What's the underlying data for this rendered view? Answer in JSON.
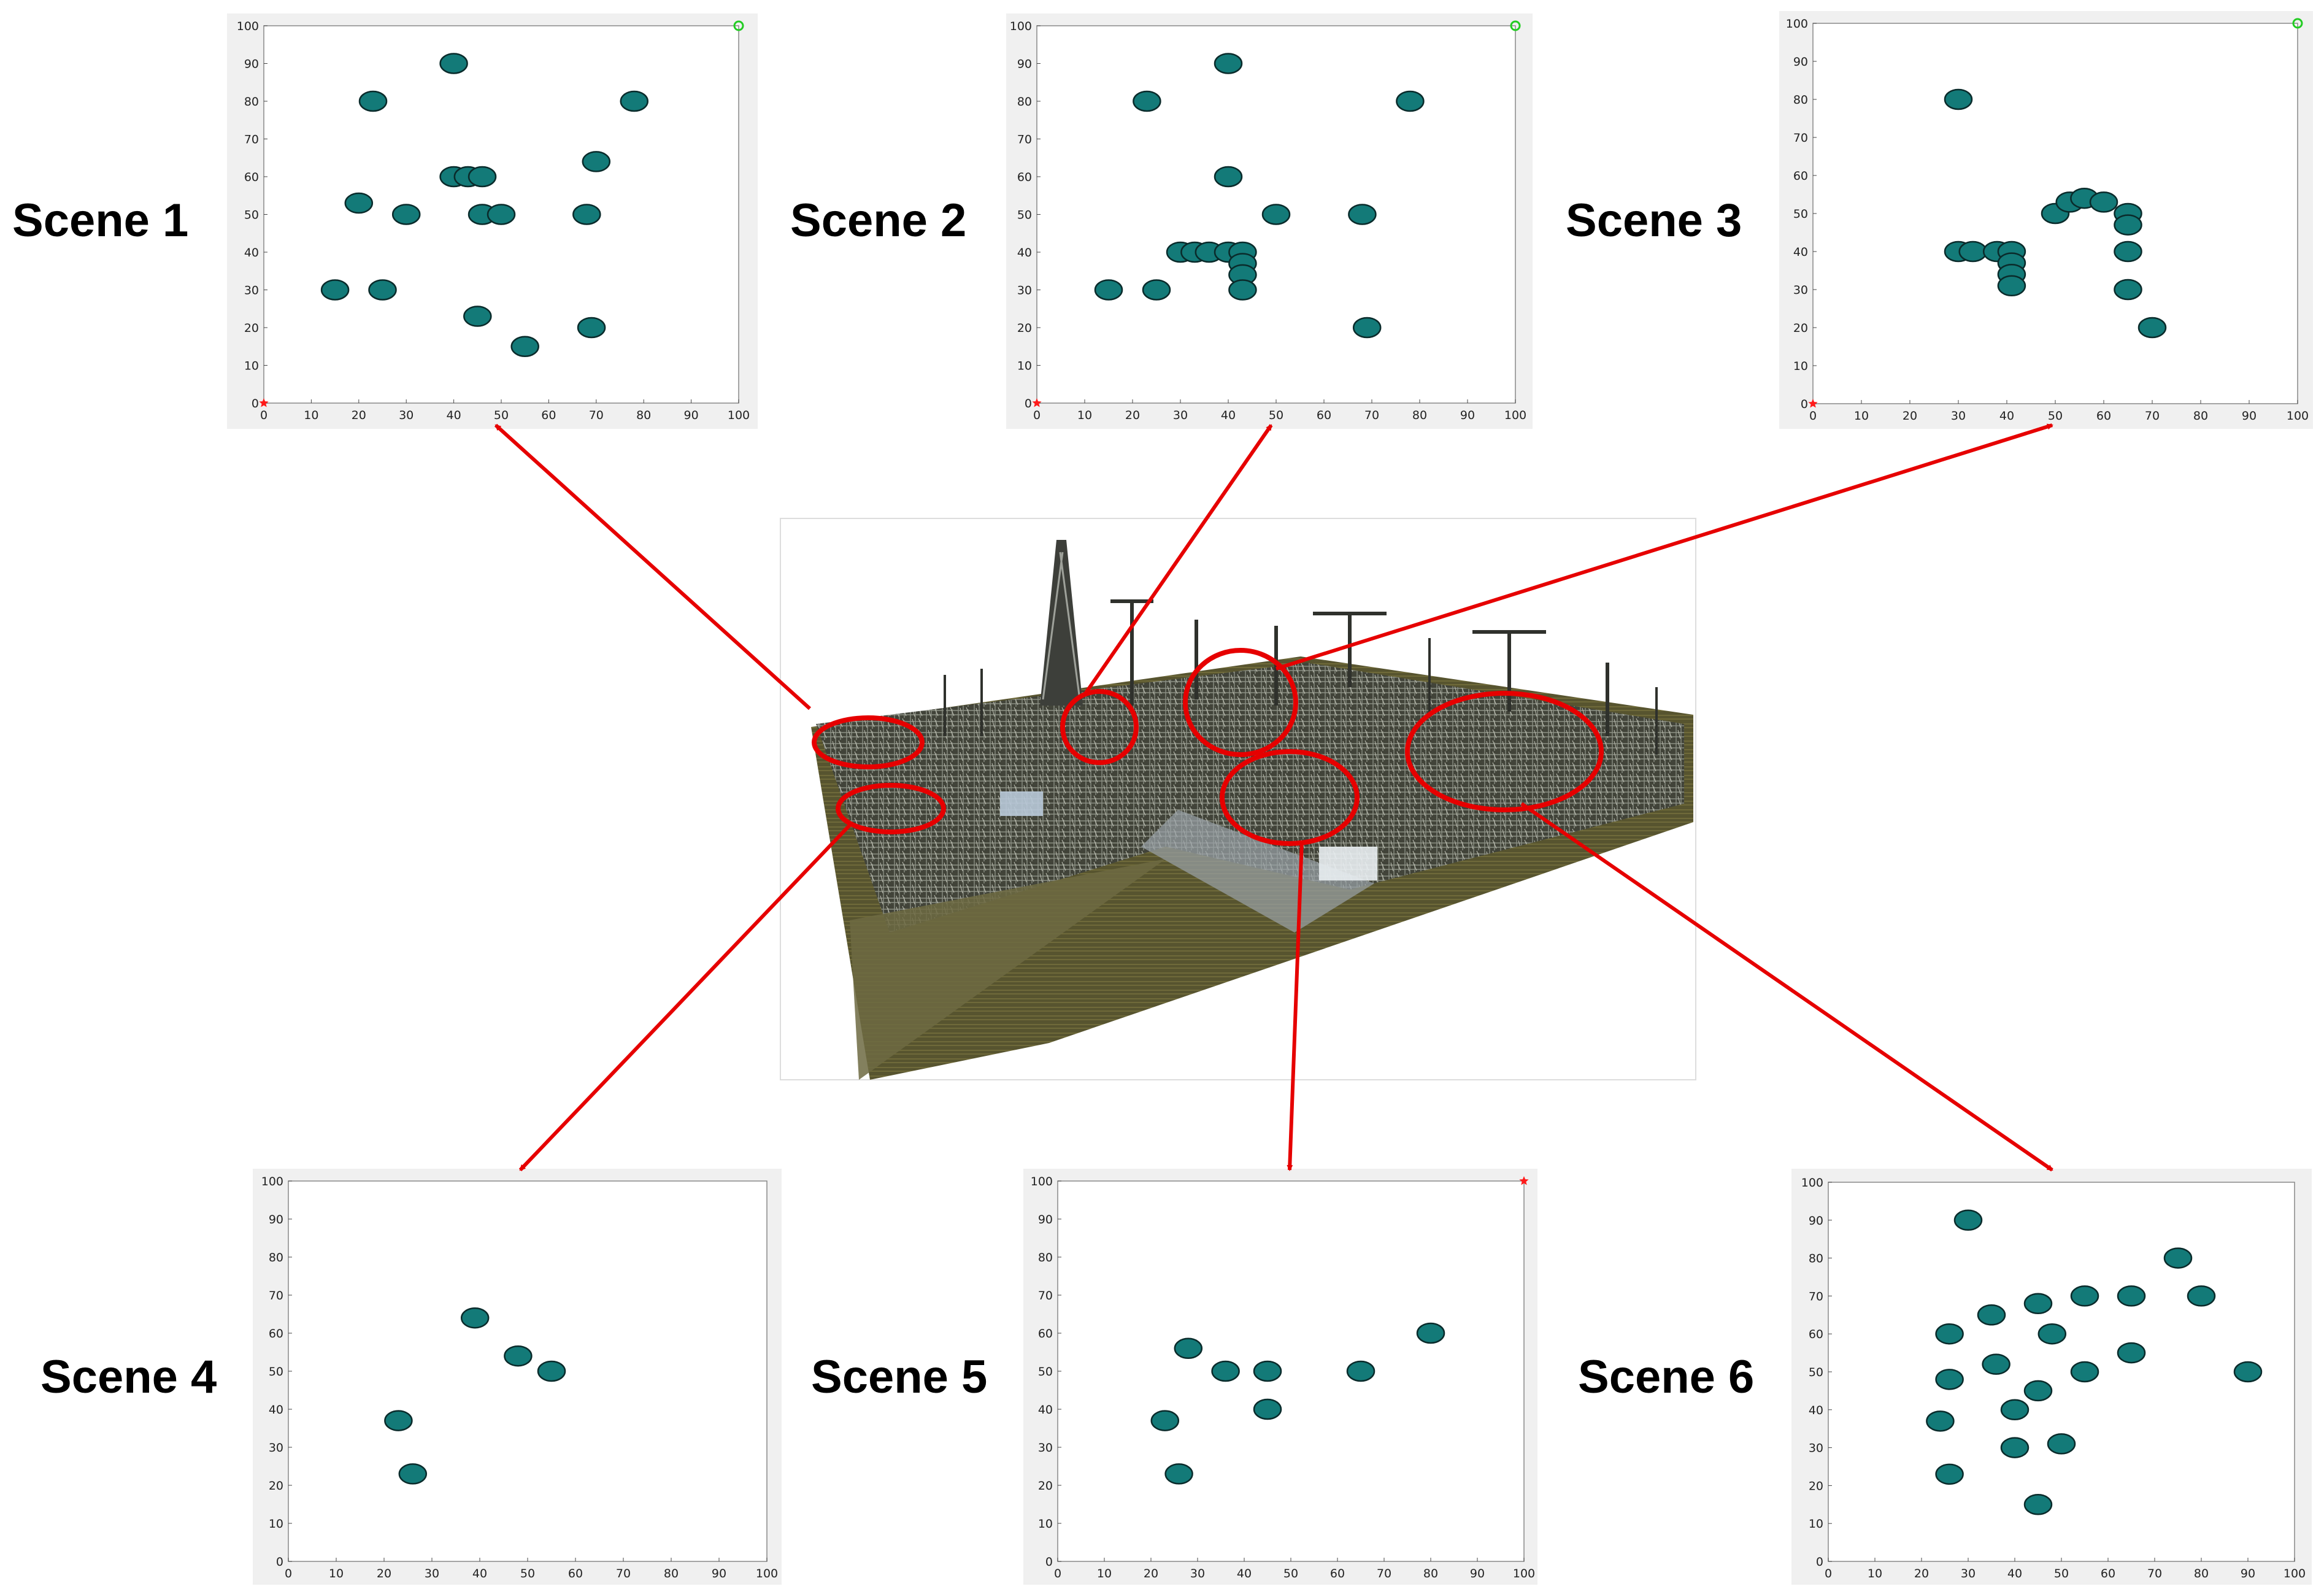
{
  "colors": {
    "marker_fill": "#137a78",
    "marker_stroke": "#0a2b2b",
    "arrow": "#e60000",
    "ellipse": "#e60000",
    "plot_frame_bg": "#f0f0f0",
    "axes_bg": "#ffffff",
    "start_marker": "#ff1a1a",
    "goal_marker": "#22cc22"
  },
  "icons": {
    "start": "red-star-icon",
    "goal": "green-circle-icon"
  },
  "center_image": {
    "description_icon": "substation-point-cloud-image"
  },
  "chart_data": [
    {
      "type": "scatter",
      "label": "Scene 1",
      "xlim": [
        0,
        100
      ],
      "ylim": [
        0,
        100
      ],
      "xticks": [
        0,
        10,
        20,
        30,
        40,
        50,
        60,
        70,
        80,
        90,
        100
      ],
      "yticks": [
        0,
        10,
        20,
        30,
        40,
        50,
        60,
        70,
        80,
        90,
        100
      ],
      "points": [
        [
          40,
          90
        ],
        [
          23,
          80
        ],
        [
          78,
          80
        ],
        [
          70,
          64
        ],
        [
          20,
          53
        ],
        [
          30,
          50
        ],
        [
          40,
          60
        ],
        [
          43,
          60
        ],
        [
          46,
          60
        ],
        [
          46,
          50
        ],
        [
          50,
          50
        ],
        [
          68,
          50
        ],
        [
          15,
          30
        ],
        [
          25,
          30
        ],
        [
          45,
          23
        ],
        [
          55,
          15
        ],
        [
          69,
          20
        ]
      ],
      "start": [
        0,
        0
      ],
      "goal": [
        100,
        100
      ]
    },
    {
      "type": "scatter",
      "label": "Scene 2",
      "xlim": [
        0,
        100
      ],
      "ylim": [
        0,
        100
      ],
      "xticks": [
        0,
        10,
        20,
        30,
        40,
        50,
        60,
        70,
        80,
        90,
        100
      ],
      "yticks": [
        0,
        10,
        20,
        30,
        40,
        50,
        60,
        70,
        80,
        90,
        100
      ],
      "points": [
        [
          40,
          90
        ],
        [
          23,
          80
        ],
        [
          78,
          80
        ],
        [
          40,
          60
        ],
        [
          50,
          50
        ],
        [
          68,
          50
        ],
        [
          30,
          40
        ],
        [
          33,
          40
        ],
        [
          36,
          40
        ],
        [
          40,
          40
        ],
        [
          43,
          40
        ],
        [
          43,
          37
        ],
        [
          43,
          34
        ],
        [
          43,
          30
        ],
        [
          15,
          30
        ],
        [
          25,
          30
        ],
        [
          69,
          20
        ]
      ],
      "start": [
        0,
        0
      ],
      "goal": [
        100,
        100
      ]
    },
    {
      "type": "scatter",
      "label": "Scene 3",
      "xlim": [
        0,
        100
      ],
      "ylim": [
        0,
        100
      ],
      "xticks": [
        0,
        10,
        20,
        30,
        40,
        50,
        60,
        70,
        80,
        90,
        100
      ],
      "yticks": [
        0,
        10,
        20,
        30,
        40,
        50,
        60,
        70,
        80,
        90,
        100
      ],
      "points": [
        [
          30,
          80
        ],
        [
          30,
          40
        ],
        [
          33,
          40
        ],
        [
          38,
          40
        ],
        [
          41,
          40
        ],
        [
          41,
          37
        ],
        [
          41,
          34
        ],
        [
          41,
          31
        ],
        [
          50,
          50
        ],
        [
          53,
          53
        ],
        [
          56,
          54
        ],
        [
          60,
          53
        ],
        [
          65,
          50
        ],
        [
          65,
          47
        ],
        [
          65,
          40
        ],
        [
          65,
          30
        ],
        [
          70,
          20
        ]
      ],
      "start": [
        0,
        0
      ],
      "goal": [
        100,
        100
      ]
    },
    {
      "type": "scatter",
      "label": "Scene 4",
      "xlim": [
        0,
        100
      ],
      "ylim": [
        0,
        100
      ],
      "xticks": [
        0,
        10,
        20,
        30,
        40,
        50,
        60,
        70,
        80,
        90,
        100
      ],
      "yticks": [
        0,
        10,
        20,
        30,
        40,
        50,
        60,
        70,
        80,
        90,
        100
      ],
      "points": [
        [
          39,
          64
        ],
        [
          48,
          54
        ],
        [
          55,
          50
        ],
        [
          23,
          37
        ],
        [
          26,
          23
        ]
      ]
    },
    {
      "type": "scatter",
      "label": "Scene 5",
      "xlim": [
        0,
        100
      ],
      "ylim": [
        0,
        100
      ],
      "xticks": [
        0,
        10,
        20,
        30,
        40,
        50,
        60,
        70,
        80,
        90,
        100
      ],
      "yticks": [
        0,
        10,
        20,
        30,
        40,
        50,
        60,
        70,
        80,
        90,
        100
      ],
      "points": [
        [
          28,
          56
        ],
        [
          36,
          50
        ],
        [
          45,
          50
        ],
        [
          65,
          50
        ],
        [
          80,
          60
        ],
        [
          45,
          40
        ],
        [
          23,
          37
        ],
        [
          26,
          23
        ]
      ],
      "start": [
        100,
        100
      ]
    },
    {
      "type": "scatter",
      "label": "Scene 6",
      "xlim": [
        0,
        100
      ],
      "ylim": [
        0,
        100
      ],
      "xticks": [
        0,
        10,
        20,
        30,
        40,
        50,
        60,
        70,
        80,
        90,
        100
      ],
      "yticks": [
        0,
        10,
        20,
        30,
        40,
        50,
        60,
        70,
        80,
        90,
        100
      ],
      "points": [
        [
          30,
          90
        ],
        [
          75,
          80
        ],
        [
          80,
          70
        ],
        [
          55,
          70
        ],
        [
          65,
          70
        ],
        [
          45,
          68
        ],
        [
          35,
          65
        ],
        [
          26,
          60
        ],
        [
          48,
          60
        ],
        [
          65,
          55
        ],
        [
          36,
          52
        ],
        [
          55,
          50
        ],
        [
          90,
          50
        ],
        [
          26,
          48
        ],
        [
          45,
          45
        ],
        [
          40,
          40
        ],
        [
          24,
          37
        ],
        [
          40,
          30
        ],
        [
          50,
          31
        ],
        [
          26,
          23
        ],
        [
          45,
          15
        ]
      ]
    }
  ]
}
